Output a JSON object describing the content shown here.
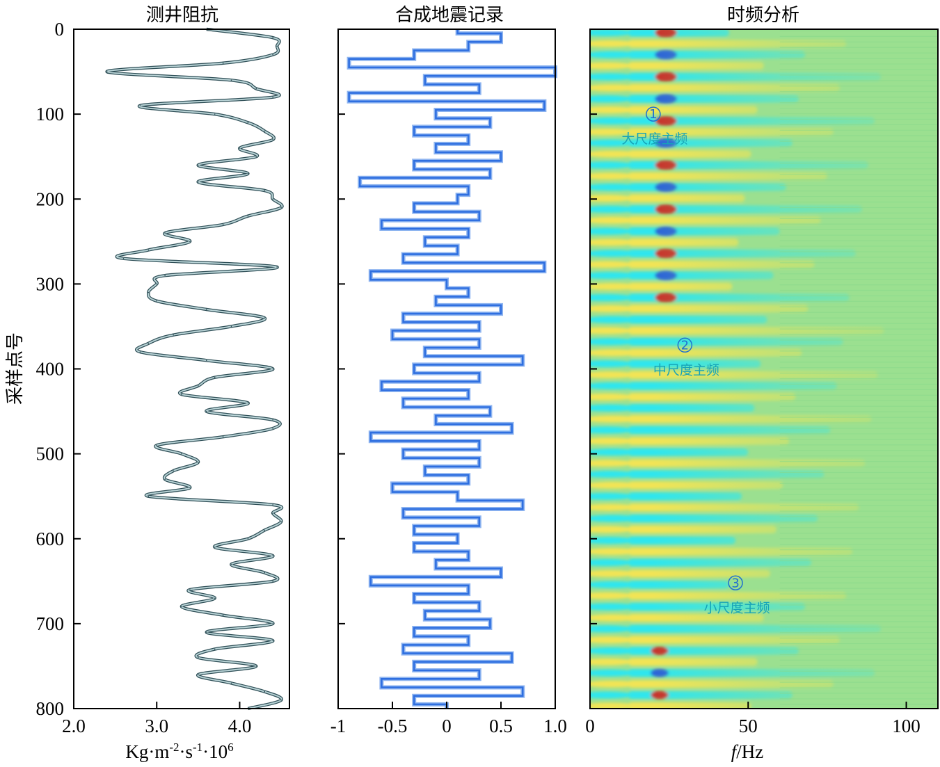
{
  "ylabel": "采样点号",
  "y_range": [
    0,
    800
  ],
  "y_ticks": [
    0,
    100,
    200,
    300,
    400,
    500,
    600,
    700,
    800
  ],
  "y_tick_labels": [
    "0",
    "100",
    "200",
    "300",
    "400",
    "500",
    "600",
    "700",
    "800"
  ],
  "colors": {
    "impedance_line": "#6f9aa2",
    "impedance_edge": "#2f4f57",
    "seismic_line": "#2f6fe0",
    "tf_background": "#9be090",
    "tf_cyan": "#2ee6ee",
    "tf_yellow": "#f2e454",
    "tf_red": "#c8302a",
    "tf_blue": "#2a63d8",
    "annotation": "#16a3b8"
  },
  "chart_data": [
    {
      "id": "impedance",
      "type": "line",
      "title": "测井阻抗",
      "xlabel": "Kg·m-2·s-1·106",
      "xlabel_parts": {
        "base1": "Kg·m",
        "sup1": "-2",
        "base2": "·s",
        "sup2": "-1",
        "base3": "·10",
        "sup3": "6"
      },
      "xlim": [
        2.0,
        4.6
      ],
      "x_ticks": [
        2.0,
        3.0,
        4.0
      ],
      "x_tick_labels": [
        "2.0",
        "3.0",
        "4.0"
      ],
      "ylim": [
        0,
        800
      ],
      "samples": [
        0,
        10,
        20,
        30,
        40,
        50,
        60,
        70,
        80,
        90,
        100,
        110,
        120,
        130,
        140,
        150,
        160,
        170,
        180,
        190,
        200,
        210,
        220,
        230,
        240,
        250,
        260,
        270,
        280,
        290,
        300,
        310,
        320,
        330,
        340,
        350,
        360,
        370,
        380,
        390,
        400,
        410,
        420,
        430,
        440,
        450,
        460,
        470,
        480,
        490,
        500,
        510,
        520,
        530,
        540,
        550,
        560,
        570,
        580,
        590,
        600,
        610,
        620,
        630,
        640,
        650,
        660,
        670,
        680,
        690,
        700,
        710,
        720,
        730,
        740,
        750,
        760,
        770,
        780,
        790,
        800
      ],
      "values": [
        3.6,
        4.4,
        4.45,
        4.4,
        3.8,
        2.4,
        3.9,
        4.2,
        4.4,
        2.8,
        3.7,
        4.1,
        4.3,
        4.4,
        4.0,
        4.2,
        3.5,
        4.1,
        3.5,
        4.3,
        4.4,
        4.5,
        4.1,
        3.8,
        3.1,
        3.4,
        2.9,
        2.6,
        4.45,
        3.1,
        3.0,
        2.9,
        3.0,
        3.6,
        4.3,
        3.9,
        3.2,
        2.9,
        2.8,
        3.6,
        4.4,
        3.7,
        3.5,
        3.3,
        4.1,
        3.6,
        4.4,
        4.4,
        3.8,
        3.0,
        3.3,
        3.5,
        3.2,
        3.1,
        3.4,
        2.9,
        4.4,
        4.4,
        4.5,
        4.3,
        4.1,
        3.7,
        4.4,
        3.9,
        4.3,
        4.4,
        3.4,
        3.7,
        3.3,
        3.8,
        4.4,
        3.6,
        4.4,
        3.7,
        3.5,
        4.2,
        3.5,
        3.9,
        4.3,
        4.5,
        4.1
      ]
    },
    {
      "id": "synthetic",
      "type": "line",
      "title": "合成地震记录",
      "xlabel": "",
      "xlim": [
        -1,
        1
      ],
      "x_ticks": [
        -1,
        -0.5,
        0,
        0.5,
        1.0
      ],
      "x_tick_labels": [
        "-1",
        "-0.5",
        "0",
        "0.5",
        "1.0"
      ],
      "ylim": [
        0,
        800
      ],
      "samples": [
        0,
        10,
        20,
        30,
        40,
        50,
        60,
        70,
        80,
        90,
        100,
        110,
        120,
        130,
        140,
        150,
        160,
        170,
        180,
        190,
        200,
        210,
        220,
        230,
        240,
        250,
        260,
        270,
        280,
        290,
        300,
        310,
        320,
        330,
        340,
        350,
        360,
        370,
        380,
        390,
        400,
        410,
        420,
        430,
        440,
        450,
        460,
        470,
        480,
        490,
        500,
        510,
        520,
        530,
        540,
        550,
        560,
        570,
        580,
        590,
        600,
        610,
        620,
        630,
        640,
        650,
        660,
        670,
        680,
        690,
        700,
        710,
        720,
        730,
        740,
        750,
        760,
        770,
        780,
        790,
        800
      ],
      "values": [
        0.1,
        0.5,
        0.2,
        -0.3,
        -0.9,
        1.0,
        -0.2,
        0.3,
        -0.9,
        0.9,
        -0.1,
        0.4,
        -0.3,
        0.2,
        -0.1,
        0.5,
        -0.3,
        0.4,
        -0.8,
        0.2,
        0.1,
        -0.3,
        0.3,
        -0.6,
        0.2,
        -0.2,
        0.1,
        -0.4,
        0.9,
        -0.7,
        0.0,
        0.2,
        -0.1,
        0.5,
        -0.4,
        0.3,
        -0.5,
        0.3,
        -0.2,
        0.7,
        -0.3,
        0.3,
        -0.6,
        0.2,
        -0.4,
        0.4,
        -0.1,
        0.6,
        -0.7,
        0.3,
        -0.4,
        0.3,
        -0.2,
        0.2,
        -0.5,
        0.1,
        0.7,
        -0.4,
        0.3,
        -0.3,
        0.1,
        -0.3,
        0.2,
        -0.1,
        0.5,
        -0.7,
        0.2,
        -0.3,
        0.3,
        -0.2,
        0.4,
        -0.3,
        0.2,
        -0.4,
        0.6,
        -0.3,
        0.3,
        -0.6,
        0.7,
        -0.3,
        0.0
      ]
    },
    {
      "id": "time-frequency",
      "type": "heatmap",
      "title": "时频分析",
      "xlabel": "f/Hz",
      "xlabel_parts": {
        "italic": "f",
        "rest": "/Hz"
      },
      "xlim": [
        0,
        110
      ],
      "x_ticks": [
        0,
        50,
        100
      ],
      "x_tick_labels": [
        "0",
        "50",
        "100"
      ],
      "ylim": [
        0,
        800
      ],
      "annotations": [
        {
          "num": "1",
          "label": "大尺度主频",
          "f": 20,
          "sample": 100
        },
        {
          "num": "2",
          "label": "中尺度主频",
          "f": 30,
          "sample": 372
        },
        {
          "num": "3",
          "label": "小尺度主频",
          "f": 46,
          "sample": 652
        }
      ]
    }
  ]
}
